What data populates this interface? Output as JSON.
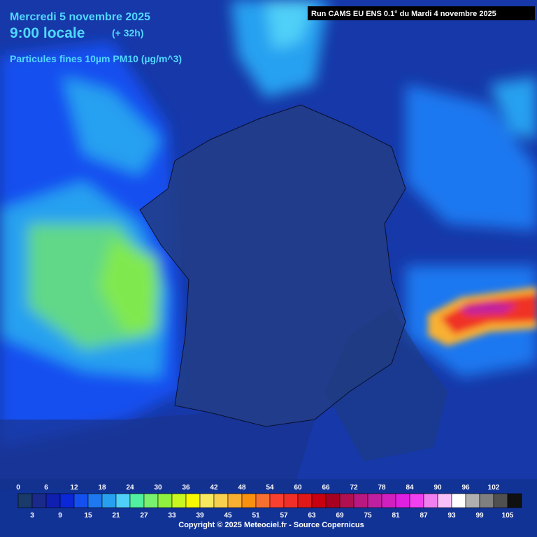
{
  "header": {
    "date": "Mercredi 5 novembre 2025",
    "time": "9:00 locale",
    "lead": "(+ 32h)",
    "parameter": "Particules fines 10µm PM10 (µg/m^3)",
    "run": "Run CAMS EU ENS 0.1° du Mardi 4 novembre 2025"
  },
  "legend": {
    "labels": [
      0,
      3,
      6,
      9,
      12,
      15,
      18,
      21,
      24,
      27,
      30,
      33,
      36,
      39,
      42,
      45,
      48,
      51,
      54,
      57,
      60,
      63,
      66,
      69,
      72,
      75,
      78,
      81,
      84,
      87,
      90,
      93,
      96,
      99,
      102,
      105
    ],
    "colors": [
      "#1a3a6a",
      "#1a2a8a",
      "#0f1fb0",
      "#0a28d8",
      "#1450f0",
      "#1e78f0",
      "#28a0f0",
      "#50d0f8",
      "#50f0a0",
      "#78f070",
      "#90f040",
      "#c8f820",
      "#f8f800",
      "#f8e860",
      "#f8d050",
      "#f8b030",
      "#f89010",
      "#f87030",
      "#f84030",
      "#f03028",
      "#e01818",
      "#c80010",
      "#a80020",
      "#b01050",
      "#b81880",
      "#c020a0",
      "#d020c0",
      "#e020e0",
      "#f040f0",
      "#f080f0",
      "#f8c0f8",
      "#ffffff",
      "#b0b0b0",
      "#808080",
      "#505050",
      "#101010"
    ]
  },
  "footer": {
    "copyright": "Copyright © 2025 Meteociel.fr - Source Copernicus"
  }
}
